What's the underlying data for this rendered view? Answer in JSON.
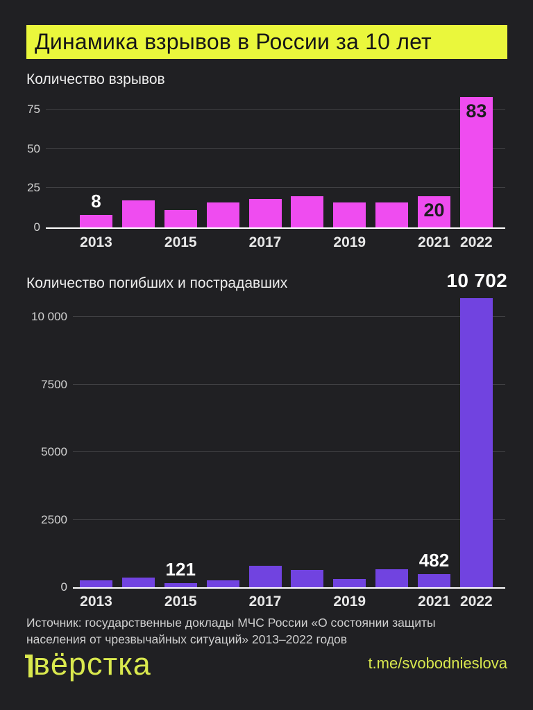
{
  "header": {
    "title": "Динамика взрывов в России за 10 лет"
  },
  "colors": {
    "background": "#202023",
    "accent_yellow": "#eaf73c",
    "footer_yellow": "#d9e84e",
    "explosions_bar": "#ef4cf0",
    "victims_bar": "#7143e0",
    "axis": "#ffffff",
    "grid": "#404043",
    "dark_bar_label": "#1d1d20"
  },
  "chart_data": [
    {
      "type": "bar",
      "title": "Количество взрывов",
      "categories": [
        "2013",
        "2014",
        "2015",
        "2016",
        "2017",
        "2018",
        "2019",
        "2020",
        "2021",
        "2022"
      ],
      "values": [
        8,
        17,
        11,
        16,
        18,
        20,
        16,
        16,
        20,
        83
      ],
      "ylim": [
        0,
        85
      ],
      "grid": true,
      "bar_color": "#ef4cf0",
      "yticks": [
        {
          "value": 0,
          "label": "0"
        },
        {
          "value": 25,
          "label": "25"
        },
        {
          "value": 50,
          "label": "50"
        },
        {
          "value": 75,
          "label": "75"
        }
      ],
      "xticks": [
        {
          "index": 0,
          "label": "2013"
        },
        {
          "index": 2,
          "label": "2015"
        },
        {
          "index": 4,
          "label": "2017"
        },
        {
          "index": 6,
          "label": "2019"
        },
        {
          "index": 8,
          "label": "2021"
        },
        {
          "index": 9,
          "label": "2022"
        }
      ],
      "bar_labels": [
        {
          "index": 0,
          "text": "8",
          "pos": "above",
          "tone": "light"
        },
        {
          "index": 8,
          "text": "20",
          "pos": "inside",
          "tone": "dark"
        },
        {
          "index": 9,
          "text": "83",
          "pos": "inside",
          "tone": "dark"
        }
      ]
    },
    {
      "type": "bar",
      "title": "Количество погибших и пострадавших",
      "categories": [
        "2013",
        "2014",
        "2015",
        "2016",
        "2017",
        "2018",
        "2019",
        "2020",
        "2021",
        "2022"
      ],
      "values": [
        260,
        370,
        121,
        260,
        790,
        640,
        310,
        680,
        482,
        10702
      ],
      "ylim": [
        0,
        10800
      ],
      "grid": true,
      "bar_color": "#7143e0",
      "peak_label": "10 702",
      "yticks": [
        {
          "value": 0,
          "label": "0"
        },
        {
          "value": 2500,
          "label": "2500"
        },
        {
          "value": 5000,
          "label": "5000"
        },
        {
          "value": 7500,
          "label": "7500"
        },
        {
          "value": 10000,
          "label": "10 000"
        }
      ],
      "xticks": [
        {
          "index": 0,
          "label": "2013"
        },
        {
          "index": 2,
          "label": "2015"
        },
        {
          "index": 4,
          "label": "2017"
        },
        {
          "index": 6,
          "label": "2019"
        },
        {
          "index": 8,
          "label": "2021"
        },
        {
          "index": 9,
          "label": "2022"
        }
      ],
      "bar_labels": [
        {
          "index": 2,
          "text": "121",
          "pos": "above",
          "tone": "light"
        },
        {
          "index": 8,
          "text": "482",
          "pos": "above",
          "tone": "light"
        }
      ]
    }
  ],
  "source": "Источник: государственные доклады МЧС России «О состоянии защиты населения от чрезвычайных ситуаций» 2013–2022 годов",
  "footer": {
    "logo_text": "вёрстка",
    "link": "t.me/svobodnieslova"
  }
}
